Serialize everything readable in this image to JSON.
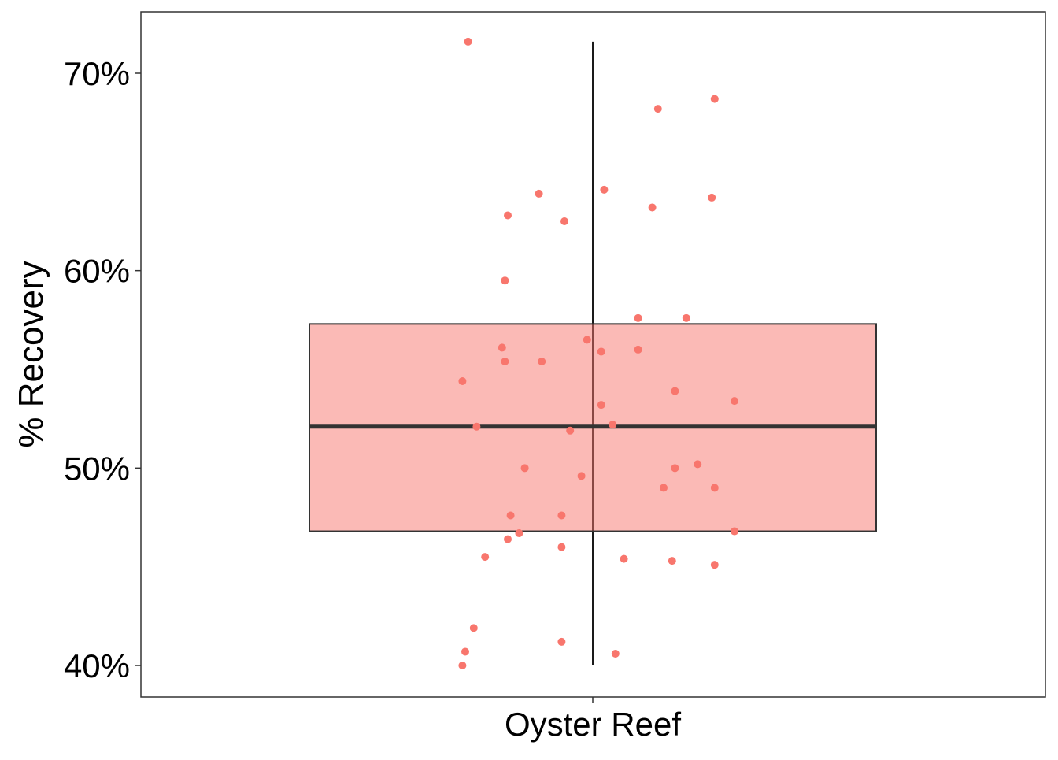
{
  "chart_data": {
    "type": "box",
    "ylabel": "% Recovery",
    "xlabel": "",
    "categories": [
      "Oyster Reef"
    ],
    "y_ticks": [
      {
        "value": 0.4,
        "label": "40%"
      },
      {
        "value": 0.5,
        "label": "50%"
      },
      {
        "value": 0.6,
        "label": "60%"
      },
      {
        "value": 0.7,
        "label": "70%"
      }
    ],
    "ylim": [
      0.384,
      0.731
    ],
    "grid": false,
    "box": {
      "category": "Oyster Reef",
      "min": 0.4,
      "q1": 0.468,
      "median": 0.521,
      "q3": 0.573,
      "max": 0.716
    },
    "points": [
      {
        "x": -0.44,
        "y": 0.716
      },
      {
        "x": 0.43,
        "y": 0.687
      },
      {
        "x": 0.23,
        "y": 0.682
      },
      {
        "x": 0.42,
        "y": 0.637
      },
      {
        "x": 0.04,
        "y": 0.641
      },
      {
        "x": -0.19,
        "y": 0.639
      },
      {
        "x": 0.21,
        "y": 0.632
      },
      {
        "x": -0.3,
        "y": 0.628
      },
      {
        "x": -0.1,
        "y": 0.625
      },
      {
        "x": -0.31,
        "y": 0.595
      },
      {
        "x": 0.33,
        "y": 0.576
      },
      {
        "x": 0.16,
        "y": 0.576
      },
      {
        "x": 0.16,
        "y": 0.56
      },
      {
        "x": -0.02,
        "y": 0.565
      },
      {
        "x": 0.03,
        "y": 0.559
      },
      {
        "x": -0.32,
        "y": 0.561
      },
      {
        "x": -0.18,
        "y": 0.554
      },
      {
        "x": -0.31,
        "y": 0.554
      },
      {
        "x": -0.46,
        "y": 0.544
      },
      {
        "x": 0.29,
        "y": 0.539
      },
      {
        "x": 0.5,
        "y": 0.534
      },
      {
        "x": 0.03,
        "y": 0.532
      },
      {
        "x": 0.07,
        "y": 0.522
      },
      {
        "x": -0.08,
        "y": 0.519
      },
      {
        "x": -0.41,
        "y": 0.521
      },
      {
        "x": 0.37,
        "y": 0.502
      },
      {
        "x": 0.29,
        "y": 0.5
      },
      {
        "x": -0.04,
        "y": 0.496
      },
      {
        "x": -0.24,
        "y": 0.5
      },
      {
        "x": 0.43,
        "y": 0.49
      },
      {
        "x": 0.25,
        "y": 0.49
      },
      {
        "x": -0.11,
        "y": 0.476
      },
      {
        "x": -0.29,
        "y": 0.476
      },
      {
        "x": 0.5,
        "y": 0.468
      },
      {
        "x": -0.26,
        "y": 0.467
      },
      {
        "x": -0.3,
        "y": 0.464
      },
      {
        "x": -0.11,
        "y": 0.46
      },
      {
        "x": -0.38,
        "y": 0.455
      },
      {
        "x": 0.43,
        "y": 0.451
      },
      {
        "x": 0.28,
        "y": 0.453
      },
      {
        "x": 0.11,
        "y": 0.454
      },
      {
        "x": -0.42,
        "y": 0.419
      },
      {
        "x": -0.11,
        "y": 0.412
      },
      {
        "x": 0.08,
        "y": 0.406
      },
      {
        "x": -0.45,
        "y": 0.407
      },
      {
        "x": -0.46,
        "y": 0.4
      }
    ],
    "colors": {
      "box_fill": "#F8766D",
      "box_fill_opacity": 0.5,
      "point": "#F8766D",
      "box_stroke": "#333333",
      "whisker": "#1a1a1a"
    }
  }
}
